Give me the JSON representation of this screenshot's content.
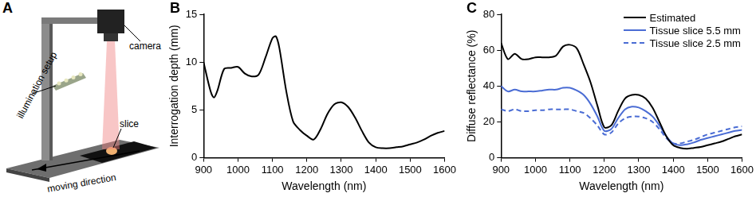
{
  "diagram": {
    "panel": "A",
    "labels": [
      "camera",
      "illumination setup",
      "slice",
      "moving direction"
    ]
  },
  "chart_data": [
    {
      "panel": "B",
      "type": "line",
      "x": [
        900,
        920,
        930,
        940,
        960,
        980,
        1000,
        1020,
        1040,
        1060,
        1080,
        1100,
        1110,
        1120,
        1140,
        1160,
        1180,
        1200,
        1220,
        1240,
        1260,
        1280,
        1300,
        1320,
        1340,
        1360,
        1380,
        1400,
        1420,
        1440,
        1460,
        1480,
        1500,
        1520,
        1540,
        1560,
        1580,
        1600
      ],
      "values": [
        10,
        7,
        6.3,
        7,
        9.3,
        9.4,
        9.5,
        8.8,
        8.5,
        8.7,
        10.5,
        12.5,
        12.7,
        11.5,
        7,
        3.8,
        2.9,
        2.3,
        1.9,
        3,
        4.6,
        5.6,
        5.8,
        5.3,
        4.2,
        2.8,
        1.6,
        1.1,
        1,
        1,
        1.1,
        1.2,
        1.4,
        1.6,
        1.9,
        2.3,
        2.6,
        2.8
      ],
      "color": "#000000",
      "x_label": "Wavelength (nm)",
      "y_label": "Interrogation depth (mm)",
      "xlim": [
        900,
        1600
      ],
      "xticks": [
        900,
        1000,
        1100,
        1200,
        1300,
        1400,
        1500,
        1600
      ],
      "ylim": [
        0,
        15
      ],
      "yticks": [
        0,
        5,
        10,
        15
      ],
      "grid": false
    },
    {
      "panel": "C",
      "type": "line",
      "x": [
        900,
        920,
        940,
        960,
        980,
        1000,
        1020,
        1040,
        1060,
        1080,
        1100,
        1120,
        1140,
        1160,
        1180,
        1200,
        1220,
        1240,
        1260,
        1280,
        1300,
        1320,
        1340,
        1360,
        1380,
        1400,
        1420,
        1440,
        1460,
        1480,
        1500,
        1520,
        1540,
        1560,
        1580,
        1600
      ],
      "series": [
        {
          "name": "Estimated",
          "color": "#000000",
          "line_style": "solid",
          "values": [
            64,
            55,
            58,
            55,
            55,
            56,
            56,
            56,
            57,
            62,
            63,
            61,
            52,
            42,
            29,
            17,
            18,
            26,
            33,
            35,
            35,
            33,
            28,
            20,
            12,
            7,
            5.5,
            5,
            5.5,
            6,
            7,
            8,
            9,
            10.5,
            12,
            13
          ]
        },
        {
          "name": "Tissue slice 5.5 mm",
          "color": "#4a6cd4",
          "line_style": "solid",
          "values": [
            40,
            37,
            38,
            37,
            37,
            37,
            37.5,
            38,
            38,
            39,
            39,
            37.5,
            35,
            30,
            23,
            15,
            16,
            22,
            27,
            28.5,
            28,
            26,
            23,
            18,
            12,
            8,
            7,
            7.5,
            8.5,
            10,
            11,
            12,
            13,
            14,
            15,
            15.5
          ]
        },
        {
          "name": "Tissue slice 2.5 mm",
          "color": "#4a6cd4",
          "line_style": "dashed",
          "values": [
            27,
            26,
            27,
            26,
            26,
            26.5,
            26.5,
            27,
            27,
            27,
            27,
            26,
            25,
            22,
            18,
            13,
            14,
            19,
            22,
            23,
            23,
            22,
            20,
            16,
            11,
            8,
            8,
            9,
            10,
            11.5,
            13,
            14,
            15,
            16,
            17,
            17.5
          ]
        }
      ],
      "x_label": "Wavelength (nm)",
      "y_label": "Diffuse reflectance (%)",
      "xlim": [
        900,
        1600
      ],
      "xticks": [
        900,
        1000,
        1100,
        1200,
        1300,
        1400,
        1500,
        1600
      ],
      "ylim": [
        0,
        80
      ],
      "yticks": [
        0,
        20,
        40,
        60,
        80
      ],
      "grid": false,
      "legend": "upper right"
    }
  ]
}
